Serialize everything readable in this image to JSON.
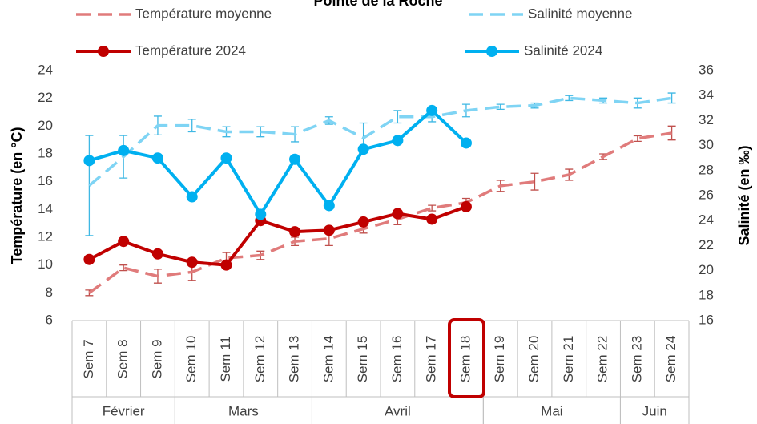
{
  "chart_data": {
    "type": "line",
    "title": "Pointe de la Roche",
    "ylabel": "Température  (en °C)",
    "y2label": "Salinité (en ‰)",
    "categories": [
      "Sem 7",
      "Sem 8",
      "Sem 9",
      "Sem 10",
      "Sem 11",
      "Sem 12",
      "Sem 13",
      "Sem 14",
      "Sem 15",
      "Sem 16",
      "Sem 17",
      "Sem 18",
      "Sem 19",
      "Sem 20",
      "Sem 21",
      "Sem 22",
      "Sem 23",
      "Sem 24"
    ],
    "groups": [
      {
        "label": "Février",
        "span": 3
      },
      {
        "label": "Mars",
        "span": 4
      },
      {
        "label": "Avril",
        "span": 5
      },
      {
        "label": "Mai",
        "span": 4
      },
      {
        "label": "Juin",
        "span": 2
      }
    ],
    "ylim": [
      6,
      24
    ],
    "yticks": [
      6,
      8,
      10,
      12,
      14,
      16,
      18,
      20,
      22,
      24
    ],
    "y2lim": [
      16,
      36
    ],
    "y2ticks": [
      16,
      18,
      20,
      22,
      24,
      26,
      28,
      30,
      32,
      34,
      36
    ],
    "series": [
      {
        "name": "Température moyenne",
        "color": "#e07b7b",
        "error_color": "#c0504d",
        "dashed": true,
        "axis": "y",
        "values": [
          8.0,
          9.8,
          9.2,
          9.5,
          10.5,
          10.7,
          11.7,
          11.9,
          12.6,
          13.3,
          14.1,
          14.5,
          15.7,
          16.0,
          16.5,
          17.8,
          19.1,
          19.5
        ],
        "errors": [
          0.2,
          0.2,
          0.5,
          0.6,
          0.4,
          0.3,
          0.3,
          0.5,
          0.3,
          0.4,
          0.2,
          0.3,
          0.4,
          0.6,
          0.4,
          0.2,
          0.2,
          0.5
        ]
      },
      {
        "name": "Salinité moyenne",
        "color": "#7fd4f4",
        "error_color": "#3fb8e4",
        "dashed": true,
        "axis": "y2",
        "values": [
          26.8,
          29.1,
          31.6,
          31.6,
          31.1,
          31.1,
          30.9,
          32.0,
          30.6,
          32.3,
          32.3,
          32.8,
          33.1,
          33.2,
          33.8,
          33.6,
          33.4,
          33.8
        ],
        "errors": [
          4.0,
          1.7,
          0.75,
          0.5,
          0.4,
          0.4,
          0.6,
          0.3,
          1.2,
          0.5,
          0.4,
          0.5,
          0.2,
          0.2,
          0.2,
          0.2,
          0.4,
          0.4
        ]
      },
      {
        "name": "Température 2024",
        "color": "#c00000",
        "dashed": false,
        "axis": "y",
        "values": [
          10.4,
          11.7,
          10.8,
          10.2,
          10.0,
          13.2,
          12.4,
          12.5,
          13.1,
          13.7,
          13.3,
          14.2,
          null,
          null,
          null,
          null,
          null,
          null
        ]
      },
      {
        "name": "Salinité 2024",
        "color": "#00b0f0",
        "dashed": false,
        "axis": "y2",
        "values": [
          28.8,
          29.6,
          29.0,
          25.9,
          29.0,
          24.5,
          28.9,
          25.2,
          29.7,
          30.4,
          32.8,
          30.2,
          null,
          null,
          null,
          null,
          null,
          null
        ]
      }
    ]
  }
}
